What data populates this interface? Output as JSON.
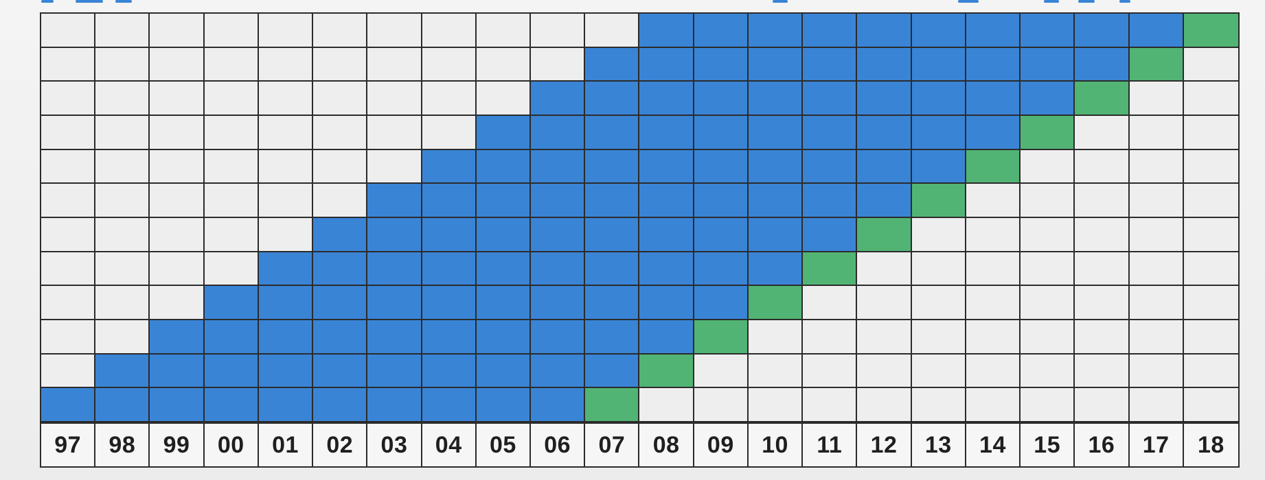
{
  "diagram": {
    "columns": [
      "97",
      "98",
      "99",
      "00",
      "01",
      "02",
      "03",
      "04",
      "05",
      "06",
      "07",
      "08",
      "09",
      "10",
      "11",
      "12",
      "13",
      "14",
      "15",
      "16",
      "17",
      "18"
    ],
    "row_count": 12,
    "colors": {
      "empty": "#eeeeee",
      "filled": "#3a84d6",
      "diagonal": "#52b474",
      "grid_line": "#2b2b2b",
      "label_text": "#1f1f1f"
    }
  }
}
